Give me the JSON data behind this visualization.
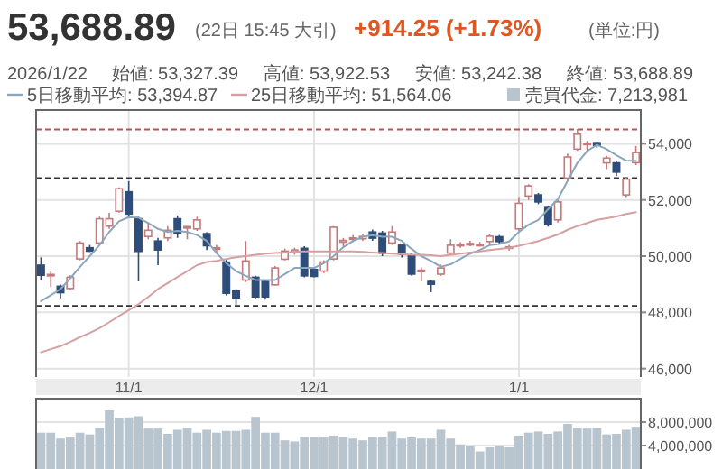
{
  "chart_data": [
    {
      "type": "candlestick",
      "title": "53,688.89",
      "subtitle": "(22日 15:45 大引)",
      "annotations": [
        "+914.25 (+1.73%)",
        "(単位:円)",
        "2026/1/22",
        "始値: 53,327.39",
        "高値: 53,922.53",
        "安値: 53,242.38",
        "終値: 53,688.89"
      ],
      "categories": [
        null,
        null,
        null,
        null,
        null,
        null,
        null,
        null,
        null,
        "11/1",
        null,
        null,
        null,
        null,
        null,
        null,
        null,
        null,
        null,
        null,
        null,
        null,
        null,
        null,
        null,
        null,
        null,
        null,
        "12/1",
        null,
        null,
        null,
        null,
        null,
        null,
        null,
        null,
        null,
        null,
        null,
        null,
        null,
        null,
        null,
        null,
        null,
        null,
        null,
        null,
        "1/1",
        null,
        null,
        null,
        null,
        null,
        null,
        null,
        null,
        null,
        null,
        null,
        null
      ],
      "ohlc": [
        [
          49680,
          49960,
          49150,
          49320
        ],
        [
          49300,
          49450,
          48900,
          49350
        ],
        [
          48930,
          48990,
          48500,
          48700
        ],
        [
          48850,
          49320,
          48800,
          49250
        ],
        [
          49900,
          50540,
          49850,
          50470
        ],
        [
          50300,
          50400,
          50150,
          50180
        ],
        [
          50470,
          51400,
          50400,
          51330
        ],
        [
          51070,
          51540,
          50970,
          51330
        ],
        [
          51600,
          52450,
          51550,
          52400
        ],
        [
          52290,
          52670,
          51400,
          51500
        ],
        [
          51330,
          51400,
          49100,
          50170
        ],
        [
          50700,
          51180,
          50600,
          50920
        ],
        [
          50540,
          50650,
          49680,
          50220
        ],
        [
          50650,
          51070,
          50540,
          50920
        ],
        [
          51330,
          51450,
          50650,
          50820
        ],
        [
          51000,
          51070,
          50600,
          51050
        ],
        [
          50970,
          51400,
          50900,
          51290
        ],
        [
          50800,
          50850,
          50220,
          50370
        ],
        [
          50250,
          50400,
          50100,
          50300
        ],
        [
          49790,
          49900,
          48600,
          48680
        ],
        [
          48760,
          48830,
          48230,
          48510
        ],
        [
          49150,
          50540,
          49080,
          49830
        ],
        [
          49250,
          49300,
          48500,
          48550
        ],
        [
          49100,
          49150,
          48450,
          48550
        ],
        [
          48980,
          49650,
          48950,
          49580
        ],
        [
          49890,
          50270,
          49850,
          50180
        ],
        [
          50150,
          50300,
          50050,
          50220
        ],
        [
          50280,
          50350,
          49250,
          49300
        ],
        [
          49530,
          49600,
          49250,
          49280
        ],
        [
          49470,
          49850,
          49400,
          49790
        ],
        [
          49900,
          51070,
          49850,
          51030
        ],
        [
          50500,
          50650,
          50350,
          50560
        ],
        [
          50600,
          50750,
          50500,
          50650
        ],
        [
          50620,
          50800,
          50550,
          50700
        ],
        [
          50860,
          50950,
          50550,
          50640
        ],
        [
          50820,
          50900,
          50000,
          50110
        ],
        [
          50470,
          51070,
          50400,
          50860
        ],
        [
          50390,
          50450,
          49950,
          50070
        ],
        [
          50040,
          50100,
          49300,
          49360
        ],
        [
          49450,
          49600,
          49100,
          49500
        ],
        [
          49100,
          49150,
          48720,
          49000
        ],
        [
          49360,
          49700,
          49300,
          49580
        ],
        [
          50110,
          50600,
          50050,
          50390
        ],
        [
          50380,
          50500,
          50300,
          50420
        ],
        [
          50400,
          50550,
          50350,
          50450
        ],
        [
          50400,
          50500,
          50350,
          50420
        ],
        [
          50520,
          50800,
          50450,
          50710
        ],
        [
          50690,
          50750,
          50450,
          50520
        ],
        [
          50280,
          50400,
          50200,
          50330
        ],
        [
          50970,
          52100,
          50900,
          51880
        ],
        [
          52140,
          52560,
          52000,
          52500
        ],
        [
          52180,
          52250,
          51850,
          51930
        ],
        [
          51760,
          51800,
          51050,
          51120
        ],
        [
          51290,
          52000,
          51200,
          51930
        ],
        [
          52780,
          53650,
          52700,
          53530
        ],
        [
          53810,
          54530,
          53750,
          54340
        ],
        [
          54000,
          54100,
          53700,
          54020
        ],
        [
          54040,
          54080,
          53850,
          53940
        ],
        [
          53320,
          53570,
          53100,
          53490
        ],
        [
          53320,
          53400,
          52850,
          52990
        ],
        [
          52180,
          52800,
          52100,
          52740
        ],
        [
          53327.39,
          53922.53,
          53242.38,
          53688.89
        ]
      ],
      "series": [
        {
          "name": "5日移動平均: 53,394.87",
          "type": "line",
          "color": "#8aa6bd",
          "values": [
            48400,
            48610,
            48830,
            49210,
            49620,
            50000,
            50390,
            50860,
            51240,
            51390,
            51370,
            51180,
            50970,
            50860,
            50900,
            50860,
            50750,
            50540,
            50110,
            49750,
            49470,
            49300,
            49150,
            49150,
            49150,
            49360,
            49580,
            49580,
            49580,
            49750,
            50000,
            50320,
            50540,
            50690,
            50750,
            50690,
            50690,
            50540,
            50260,
            50000,
            49830,
            49620,
            49710,
            49900,
            50090,
            50220,
            50390,
            50430,
            50520,
            50860,
            51120,
            51290,
            51670,
            52030,
            52680,
            53320,
            53740,
            53960,
            53810,
            53590,
            53400,
            53394.87
          ]
        },
        {
          "name": "25日移動平均: 51,564.06",
          "type": "line",
          "color": "#d6a0a0",
          "values": [
            46580,
            46690,
            46800,
            46950,
            47120,
            47270,
            47440,
            47650,
            47870,
            48080,
            48290,
            48550,
            48830,
            49040,
            49260,
            49470,
            49680,
            49790,
            49830,
            49900,
            49960,
            50000,
            50050,
            50090,
            50110,
            50130,
            50150,
            50170,
            50170,
            50170,
            50170,
            50170,
            50170,
            50150,
            50130,
            50110,
            50090,
            50070,
            50050,
            50050,
            50030,
            50000,
            50050,
            50090,
            50130,
            50170,
            50220,
            50260,
            50300,
            50370,
            50450,
            50540,
            50650,
            50770,
            50940,
            51070,
            51180,
            51290,
            51350,
            51410,
            51500,
            51564.06
          ]
        }
      ],
      "ylim": [
        45700,
        55200
      ],
      "yticks": [
        {
          "value": 46000,
          "label": "46,000"
        },
        {
          "value": 48000,
          "label": "48,000"
        },
        {
          "value": 50000,
          "label": "50,000"
        },
        {
          "value": 52000,
          "label": "52,000"
        },
        {
          "value": 54000,
          "label": "54,000"
        }
      ],
      "ref_lines": [
        {
          "axis": "y",
          "value": 54510,
          "color": "#c0504d",
          "line_style": "dashed"
        },
        {
          "axis": "y",
          "value": 52780,
          "color": "#333333",
          "line_style": "dashed"
        },
        {
          "axis": "y",
          "value": 48230,
          "color": "#333333",
          "line_style": "dashed"
        }
      ],
      "grid": true,
      "legend": "top"
    },
    {
      "type": "bar",
      "tick_labels": "y",
      "categories": [
        null,
        null,
        null,
        null,
        null,
        null,
        null,
        null,
        null,
        null,
        null,
        null,
        null,
        null,
        null,
        null,
        null,
        null,
        null,
        null,
        null,
        null,
        null,
        null,
        null,
        null,
        null,
        null,
        null,
        null,
        null,
        null,
        null,
        null,
        null,
        null,
        null,
        null,
        null,
        null,
        null,
        null,
        null,
        null,
        null,
        null,
        null,
        null,
        null,
        null,
        null,
        null,
        null,
        null,
        null,
        null,
        null,
        null,
        null,
        null,
        null,
        null
      ],
      "series": [
        {
          "name": "売買代金: 7,213,981",
          "color": "#b9c5ce",
          "values": [
            6200000,
            6200000,
            5200000,
            5400000,
            6200000,
            5900000,
            7000000,
            10000000,
            8700000,
            8800000,
            9000000,
            6900000,
            6900000,
            6000000,
            6700000,
            7000000,
            6200000,
            6700000,
            6200000,
            6500000,
            6500000,
            6700000,
            8900000,
            6200000,
            6200000,
            4900000,
            4700000,
            5500000,
            5500000,
            5500000,
            5700000,
            5400000,
            5200000,
            4900000,
            5500000,
            5500000,
            6400000,
            5200000,
            5400000,
            5200000,
            5200000,
            6700000,
            5200000,
            4200000,
            4000000,
            3000000,
            3700000,
            4000000,
            3700000,
            5700000,
            6200000,
            6400000,
            6000000,
            6400000,
            7700000,
            7000000,
            6900000,
            7000000,
            5900000,
            6000000,
            6700000,
            7213981
          ]
        }
      ],
      "ylim": [
        0,
        12000000
      ],
      "yticks": [
        {
          "value": 4000000,
          "label": "4,000,000"
        },
        {
          "value": 8000000,
          "label": "8,000,000"
        }
      ],
      "grid": "y",
      "legend": "top"
    }
  ]
}
